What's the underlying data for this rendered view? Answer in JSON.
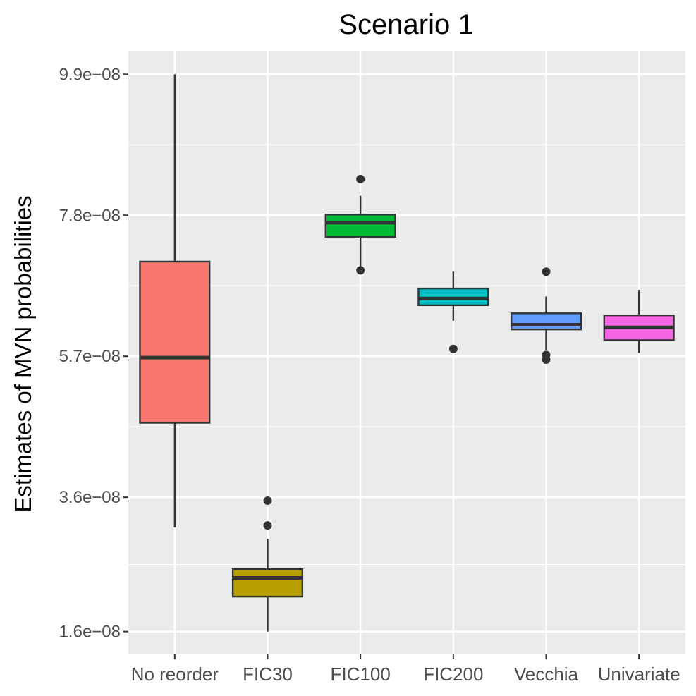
{
  "chart_data": {
    "type": "boxplot",
    "title": "Scenario 1",
    "xlabel": "",
    "ylabel": "Estimates of MVN probabilities",
    "ylim": [
      1.26e-08,
      1.025e-07
    ],
    "y_ticks": [
      1.6e-08,
      3.6e-08,
      5.7e-08,
      7.8e-08,
      9.9e-08
    ],
    "y_tick_labels": [
      "1.6e−08",
      "3.6e−08",
      "5.7e−08",
      "7.8e−08",
      "9.9e−08"
    ],
    "categories": [
      "No reorder",
      "FIC30",
      "FIC100",
      "FIC200",
      "Vecchia",
      "Univariate"
    ],
    "colors": [
      "#F8766D",
      "#B79F00",
      "#00BA38",
      "#00BFC4",
      "#619CFF",
      "#F564E3"
    ],
    "boxes": [
      {
        "name": "No reorder",
        "whisker_low": 3.15e-08,
        "q1": 4.71e-08,
        "median": 5.68e-08,
        "q3": 7.11e-08,
        "whisker_high": 9.9e-08,
        "outliers": []
      },
      {
        "name": "FIC30",
        "whisker_low": 1.6e-08,
        "q1": 2.12e-08,
        "median": 2.4e-08,
        "q3": 2.53e-08,
        "whisker_high": 2.98e-08,
        "outliers": [
          3.18e-08,
          3.55e-08
        ]
      },
      {
        "name": "FIC100",
        "whisker_low": 7e-08,
        "q1": 7.48e-08,
        "median": 7.69e-08,
        "q3": 7.81e-08,
        "whisker_high": 8.09e-08,
        "outliers": [
          6.98e-08,
          8.34e-08
        ]
      },
      {
        "name": "FIC200",
        "whisker_low": 6.23e-08,
        "q1": 6.46e-08,
        "median": 6.56e-08,
        "q3": 6.71e-08,
        "whisker_high": 6.96e-08,
        "outliers": [
          5.81e-08
        ]
      },
      {
        "name": "Vecchia",
        "whisker_low": 5.79e-08,
        "q1": 6.1e-08,
        "median": 6.17e-08,
        "q3": 6.34e-08,
        "whisker_high": 6.59e-08,
        "outliers": [
          6.96e-08,
          5.72e-08,
          5.65e-08
        ]
      },
      {
        "name": "Univariate",
        "whisker_low": 5.75e-08,
        "q1": 5.94e-08,
        "median": 6.13e-08,
        "q3": 6.31e-08,
        "whisker_high": 6.69e-08,
        "outliers": []
      }
    ]
  }
}
